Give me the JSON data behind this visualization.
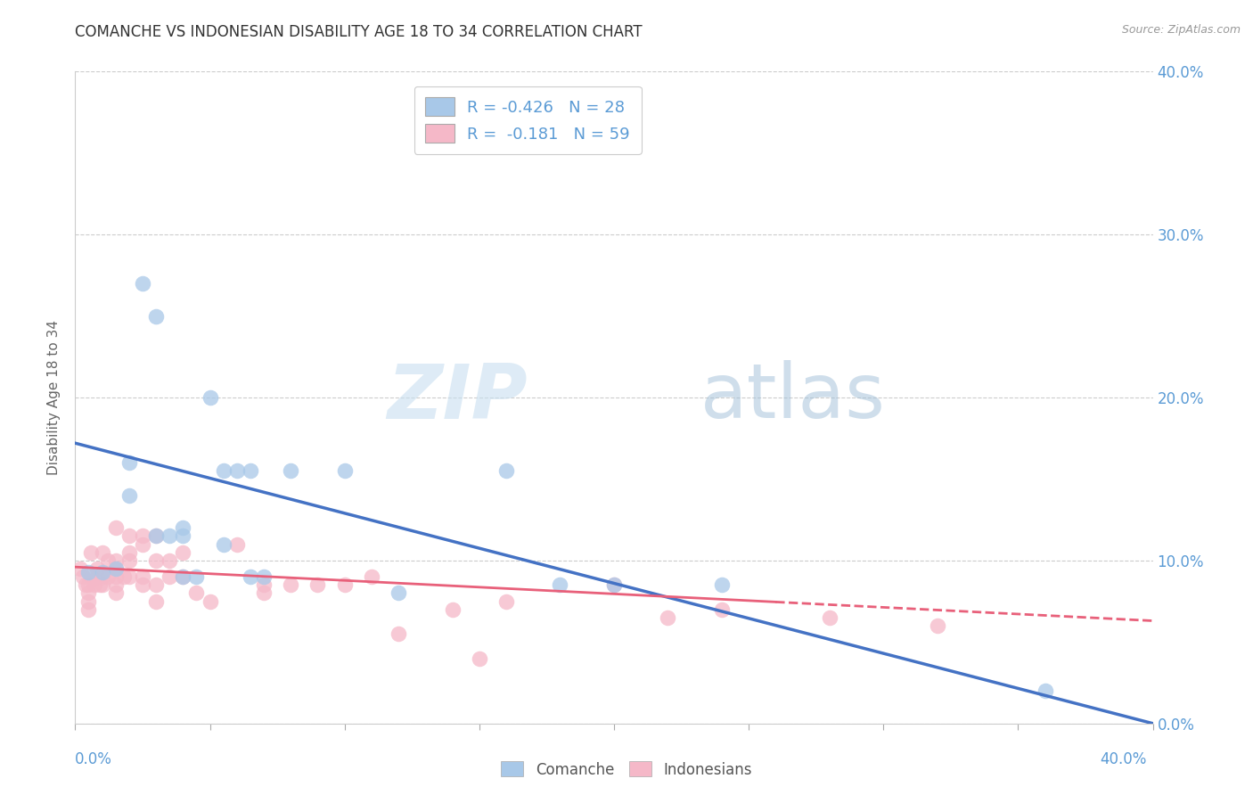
{
  "title": "COMANCHE VS INDONESIAN DISABILITY AGE 18 TO 34 CORRELATION CHART",
  "source": "Source: ZipAtlas.com",
  "ylabel": "Disability Age 18 to 34",
  "legend_label_comanche": "R = -0.426   N = 28",
  "legend_label_indonesian": "R =  -0.181   N = 59",
  "legend_label_bottom_comanche": "Comanche",
  "legend_label_bottom_indonesian": "Indonesians",
  "comanche_color": "#a8c8e8",
  "indonesian_color": "#f5b8c8",
  "comanche_line_color": "#4472c4",
  "indonesian_line_color": "#e8607a",
  "watermark_zip": "ZIP",
  "watermark_atlas": "atlas",
  "xlim": [
    0.0,
    0.4
  ],
  "ylim": [
    0.0,
    0.4
  ],
  "ytick_values": [
    0.0,
    0.1,
    0.2,
    0.3,
    0.4
  ],
  "xtick_values": [
    0.0,
    0.05,
    0.1,
    0.15,
    0.2,
    0.25,
    0.3,
    0.35,
    0.4
  ],
  "comanche_line_x": [
    0.0,
    0.4
  ],
  "comanche_line_y": [
    0.172,
    0.0
  ],
  "indonesian_line_x": [
    0.0,
    0.4
  ],
  "indonesian_line_y": [
    0.096,
    0.063
  ],
  "comanche_points": [
    [
      0.005,
      0.093
    ],
    [
      0.01,
      0.093
    ],
    [
      0.015,
      0.095
    ],
    [
      0.02,
      0.16
    ],
    [
      0.02,
      0.14
    ],
    [
      0.025,
      0.27
    ],
    [
      0.03,
      0.25
    ],
    [
      0.03,
      0.115
    ],
    [
      0.035,
      0.115
    ],
    [
      0.04,
      0.12
    ],
    [
      0.04,
      0.09
    ],
    [
      0.04,
      0.115
    ],
    [
      0.045,
      0.09
    ],
    [
      0.05,
      0.2
    ],
    [
      0.055,
      0.155
    ],
    [
      0.055,
      0.11
    ],
    [
      0.06,
      0.155
    ],
    [
      0.065,
      0.155
    ],
    [
      0.065,
      0.09
    ],
    [
      0.07,
      0.09
    ],
    [
      0.08,
      0.155
    ],
    [
      0.1,
      0.155
    ],
    [
      0.12,
      0.08
    ],
    [
      0.16,
      0.155
    ],
    [
      0.18,
      0.085
    ],
    [
      0.2,
      0.085
    ],
    [
      0.24,
      0.085
    ],
    [
      0.36,
      0.02
    ]
  ],
  "indonesian_points": [
    [
      0.002,
      0.095
    ],
    [
      0.003,
      0.09
    ],
    [
      0.004,
      0.085
    ],
    [
      0.005,
      0.085
    ],
    [
      0.005,
      0.08
    ],
    [
      0.005,
      0.075
    ],
    [
      0.005,
      0.07
    ],
    [
      0.006,
      0.105
    ],
    [
      0.006,
      0.09
    ],
    [
      0.007,
      0.085
    ],
    [
      0.008,
      0.095
    ],
    [
      0.008,
      0.09
    ],
    [
      0.009,
      0.085
    ],
    [
      0.01,
      0.105
    ],
    [
      0.01,
      0.09
    ],
    [
      0.01,
      0.085
    ],
    [
      0.012,
      0.1
    ],
    [
      0.012,
      0.09
    ],
    [
      0.015,
      0.12
    ],
    [
      0.015,
      0.1
    ],
    [
      0.015,
      0.095
    ],
    [
      0.015,
      0.09
    ],
    [
      0.015,
      0.085
    ],
    [
      0.015,
      0.08
    ],
    [
      0.018,
      0.09
    ],
    [
      0.02,
      0.115
    ],
    [
      0.02,
      0.105
    ],
    [
      0.02,
      0.1
    ],
    [
      0.02,
      0.09
    ],
    [
      0.025,
      0.115
    ],
    [
      0.025,
      0.11
    ],
    [
      0.025,
      0.09
    ],
    [
      0.025,
      0.085
    ],
    [
      0.03,
      0.115
    ],
    [
      0.03,
      0.1
    ],
    [
      0.03,
      0.085
    ],
    [
      0.03,
      0.075
    ],
    [
      0.035,
      0.1
    ],
    [
      0.035,
      0.09
    ],
    [
      0.04,
      0.105
    ],
    [
      0.04,
      0.09
    ],
    [
      0.045,
      0.08
    ],
    [
      0.05,
      0.075
    ],
    [
      0.06,
      0.11
    ],
    [
      0.07,
      0.085
    ],
    [
      0.07,
      0.08
    ],
    [
      0.08,
      0.085
    ],
    [
      0.09,
      0.085
    ],
    [
      0.1,
      0.085
    ],
    [
      0.11,
      0.09
    ],
    [
      0.12,
      0.055
    ],
    [
      0.14,
      0.07
    ],
    [
      0.15,
      0.04
    ],
    [
      0.16,
      0.075
    ],
    [
      0.2,
      0.085
    ],
    [
      0.22,
      0.065
    ],
    [
      0.24,
      0.07
    ],
    [
      0.28,
      0.065
    ],
    [
      0.32,
      0.06
    ]
  ]
}
